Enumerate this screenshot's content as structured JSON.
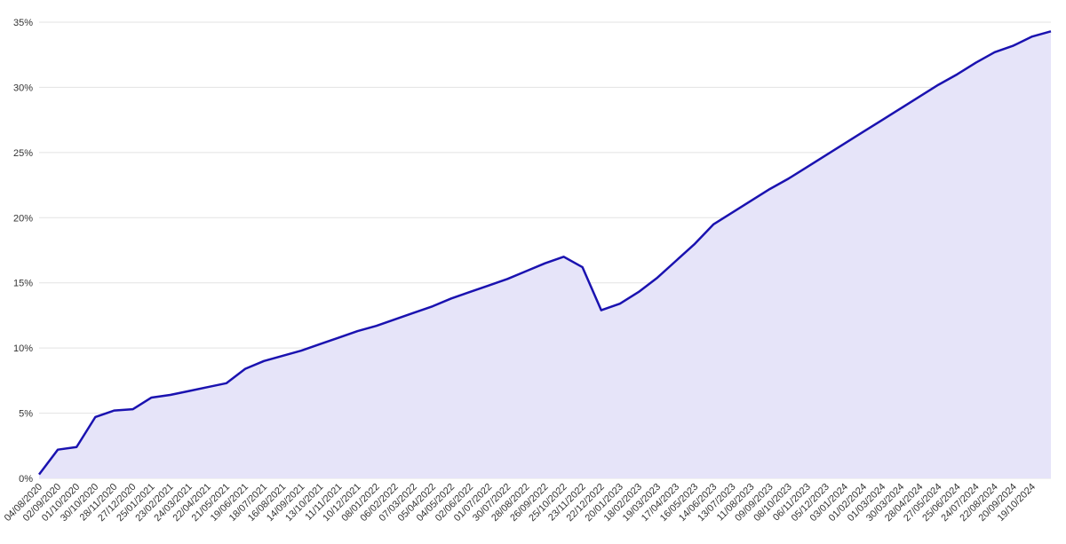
{
  "chart_data": {
    "type": "area",
    "categories": [
      "04/08/2020",
      "02/09/2020",
      "01/10/2020",
      "30/10/2020",
      "28/11/2020",
      "27/12/2020",
      "25/01/2021",
      "23/02/2021",
      "24/03/2021",
      "22/04/2021",
      "21/05/2021",
      "19/06/2021",
      "18/07/2021",
      "16/08/2021",
      "14/09/2021",
      "13/10/2021",
      "11/11/2021",
      "10/12/2021",
      "08/01/2022",
      "06/02/2022",
      "07/03/2022",
      "05/04/2022",
      "04/05/2022",
      "02/06/2022",
      "01/07/2022",
      "30/07/2022",
      "28/08/2022",
      "26/09/2022",
      "25/10/2022",
      "23/11/2022",
      "22/12/2022",
      "20/01/2023",
      "18/02/2023",
      "19/03/2023",
      "17/04/2023",
      "16/05/2023",
      "14/06/2023",
      "13/07/2023",
      "11/08/2023",
      "09/09/2023",
      "08/10/2023",
      "06/11/2023",
      "05/12/2023",
      "03/01/2024",
      "01/02/2024",
      "01/03/2024",
      "30/03/2024",
      "28/04/2024",
      "27/05/2024",
      "25/06/2024",
      "24/07/2024",
      "22/08/2024",
      "20/09/2024",
      "19/10/2024",
      null
    ],
    "values": [
      0.3,
      2.2,
      2.4,
      4.7,
      5.2,
      5.3,
      6.2,
      6.4,
      6.7,
      7.0,
      7.3,
      8.4,
      9.0,
      9.4,
      9.8,
      10.3,
      10.8,
      11.3,
      11.7,
      12.2,
      12.7,
      13.2,
      13.8,
      14.3,
      14.8,
      15.3,
      15.9,
      16.5,
      17.0,
      16.2,
      12.9,
      13.4,
      14.3,
      15.4,
      16.7,
      18.0,
      19.5,
      20.4,
      21.3,
      22.2,
      23.0,
      23.9,
      24.8,
      25.7,
      26.6,
      27.5,
      28.4,
      29.3,
      30.2,
      31.0,
      31.9,
      32.7,
      33.2,
      33.9,
      34.3
    ],
    "color": "#1a12b0",
    "fill": "#e6e4f9",
    "ylim": [
      0,
      35
    ],
    "yticks": [
      {
        "value": 0,
        "label": "0%"
      },
      {
        "value": 5,
        "label": "5%"
      },
      {
        "value": 10,
        "label": "10%"
      },
      {
        "value": 15,
        "label": "15%"
      },
      {
        "value": 20,
        "label": "20%"
      },
      {
        "value": 25,
        "label": "25%"
      },
      {
        "value": 30,
        "label": "30%"
      },
      {
        "value": 35,
        "label": "35%"
      }
    ],
    "grid": true
  }
}
